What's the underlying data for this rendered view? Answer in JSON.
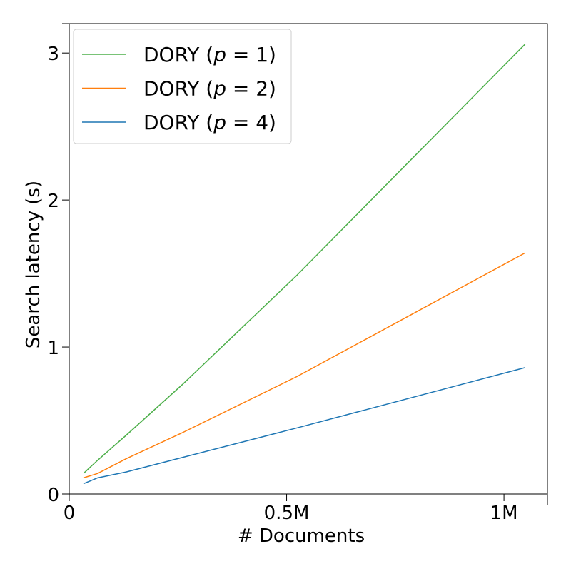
{
  "chart_data": {
    "type": "line",
    "xlabel": "# Documents",
    "ylabel": "Search latency (s)",
    "xlim": [
      0,
      1100000
    ],
    "ylim": [
      0,
      3.2
    ],
    "xticks": [
      {
        "value": 0,
        "label": "0"
      },
      {
        "value": 500000,
        "label": "0.5M"
      },
      {
        "value": 1000000,
        "label": "1M"
      }
    ],
    "yticks": [
      {
        "value": 0,
        "label": "0"
      },
      {
        "value": 1,
        "label": "1"
      },
      {
        "value": 2,
        "label": "2"
      },
      {
        "value": 3,
        "label": "3"
      }
    ],
    "grid": false,
    "legend_position": "top-left",
    "series": [
      {
        "name": "DORY (p = 1)",
        "name_prefix": "DORY (",
        "name_var": "p",
        "name_suffix": " = 1)",
        "color": "#4daf4a",
        "x": [
          32768,
          65536,
          131072,
          262144,
          524288,
          1048576
        ],
        "y": [
          0.14,
          0.23,
          0.4,
          0.75,
          1.49,
          3.06
        ]
      },
      {
        "name": "DORY (p = 2)",
        "name_prefix": "DORY (",
        "name_var": "p",
        "name_suffix": " = 2)",
        "color": "#ff7f0e",
        "x": [
          32768,
          65536,
          131072,
          262144,
          524288,
          1048576
        ],
        "y": [
          0.11,
          0.14,
          0.24,
          0.42,
          0.8,
          1.64
        ]
      },
      {
        "name": "DORY (p = 4)",
        "name_prefix": "DORY (",
        "name_var": "p",
        "name_suffix": " = 4)",
        "color": "#1f77b4",
        "x": [
          32768,
          65536,
          131072,
          262144,
          524288,
          1048576
        ],
        "y": [
          0.07,
          0.11,
          0.15,
          0.25,
          0.45,
          0.86
        ]
      }
    ]
  }
}
